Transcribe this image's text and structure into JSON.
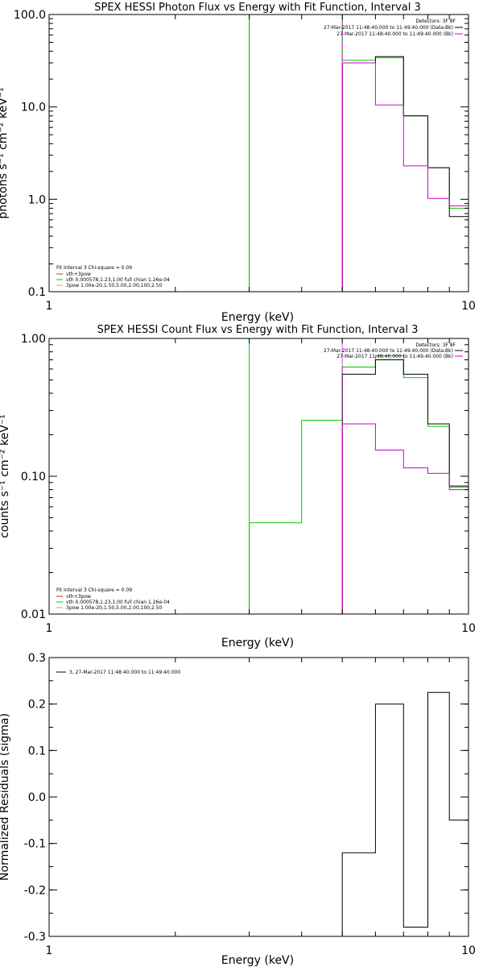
{
  "colors": {
    "data": "#000000",
    "model": "#00cc00",
    "background": "#cc00cc",
    "component": "#cc3333",
    "spow": "#ddaa00",
    "axis": "#000000"
  },
  "chart_data": [
    {
      "type": "line",
      "title": "SPEX HESSI Photon Flux vs Energy with Fit Function, Interval 3",
      "xlabel": "Energy (keV)",
      "ylabel": "photons s⁻¹ cm⁻² keV⁻¹",
      "xscale": "log",
      "yscale": "log",
      "xlim": [
        1,
        10
      ],
      "ylim": [
        0.1,
        100
      ],
      "x_ticks": [
        "1",
        "10"
      ],
      "y_ticks": [
        {
          "v": 100,
          "label": "100.0"
        },
        {
          "v": 10,
          "label": "10.0"
        },
        {
          "v": 1,
          "label": "1.0"
        },
        {
          "v": 0.1,
          "label": "0.1"
        }
      ],
      "legend_right": [
        "Detectors: 3F 8F",
        "27-Mar-2017 11:48:40.000 to 11:49:40.000 (Data-Bk)",
        "27-Mar-2017 11:48:40.000 to 11:49:40.000 (Bk)"
      ],
      "legend_left": [
        "Fit Interval 3   Chi-square = 0.09",
        "vth+3pow",
        "vth 0.000578,1.23,1.00   full chian 1.26e-04",
        "3pow 1.00e-20,1.50,5.00,2.00,100,2.50"
      ],
      "series": [
        {
          "key": "model",
          "edges": [
            3,
            5,
            6,
            7,
            8,
            9,
            10
          ],
          "values": [
            100,
            32,
            34,
            8,
            2.2,
            0.8
          ]
        },
        {
          "key": "data",
          "edges": [
            5,
            6,
            7,
            8,
            9,
            10
          ],
          "values": [
            30,
            35,
            8,
            2.2,
            0.65
          ]
        },
        {
          "key": "background",
          "edges": [
            5,
            6,
            7,
            8,
            9,
            10
          ],
          "values": [
            30,
            10.5,
            2.3,
            1.02,
            0.85
          ]
        }
      ],
      "vlines": [
        {
          "x": 3,
          "key": "model"
        },
        {
          "x": 5,
          "key": "background"
        }
      ]
    },
    {
      "type": "line",
      "title": "SPEX HESSI Count Flux vs Energy with Fit Function, Interval 3",
      "xlabel": "Energy (keV)",
      "ylabel": "counts s⁻¹ cm⁻² keV⁻¹",
      "xscale": "log",
      "yscale": "log",
      "xlim": [
        1,
        10
      ],
      "ylim": [
        0.01,
        1
      ],
      "x_ticks": [
        "1",
        "10"
      ],
      "y_ticks": [
        {
          "v": 1,
          "label": "1.00"
        },
        {
          "v": 0.1,
          "label": "0.10"
        },
        {
          "v": 0.01,
          "label": "0.01"
        }
      ],
      "legend_right": [
        "Detectors: 3F 8F",
        "27-Mar-2017 11:48:40.000 to 11:49:40.000 (Data-Bk)",
        "27-Mar-2017 11:48:40.000 to 11:49:40.000 (Bk)"
      ],
      "legend_left": [
        "Fit Interval 3   Chi-square = 0.09",
        "vth+3pow",
        "vth 0.000578,1.23,1.00   full chian 1.26e-04",
        "3pow 1.00e-20,1.50,5.00,2.00,100,2.50"
      ],
      "series": [
        {
          "key": "model",
          "edges": [
            3,
            4,
            5,
            6,
            7,
            8,
            9,
            10
          ],
          "values": [
            0.046,
            0.255,
            0.62,
            0.75,
            0.52,
            0.23,
            0.083
          ]
        },
        {
          "key": "data",
          "edges": [
            5,
            6,
            7,
            8,
            9,
            10
          ],
          "values": [
            0.55,
            0.7,
            0.55,
            0.24,
            0.085
          ]
        },
        {
          "key": "background",
          "edges": [
            5,
            6,
            7,
            8,
            9,
            10
          ],
          "values": [
            0.24,
            0.155,
            0.115,
            0.105,
            0.08
          ]
        }
      ],
      "vlines": [
        {
          "x": 3,
          "key": "model"
        },
        {
          "x": 5,
          "key": "background"
        }
      ]
    },
    {
      "type": "line",
      "title": "",
      "xlabel": "Energy (keV)",
      "ylabel": "Normalized Residuals (sigma)",
      "xscale": "log",
      "yscale": "linear",
      "xlim": [
        1,
        10
      ],
      "ylim": [
        -0.3,
        0.3
      ],
      "x_ticks": [
        "1",
        "10"
      ],
      "y_ticks": [
        {
          "v": 0.3,
          "label": "0.3"
        },
        {
          "v": 0.2,
          "label": "0.2"
        },
        {
          "v": 0.1,
          "label": "0.1"
        },
        {
          "v": 0.0,
          "label": "0.0"
        },
        {
          "v": -0.1,
          "label": "-0.1"
        },
        {
          "v": -0.2,
          "label": "-0.2"
        },
        {
          "v": -0.3,
          "label": "-0.3"
        }
      ],
      "legend_left": [
        "3, 27-Mar-2017 11:48:40.000 to 11:49:40.000"
      ],
      "series": [
        {
          "key": "data",
          "edges": [
            5,
            6,
            7,
            8,
            9,
            10
          ],
          "values": [
            -0.12,
            0.2,
            -0.28,
            0.225,
            -0.05
          ]
        }
      ],
      "vlines": []
    }
  ]
}
